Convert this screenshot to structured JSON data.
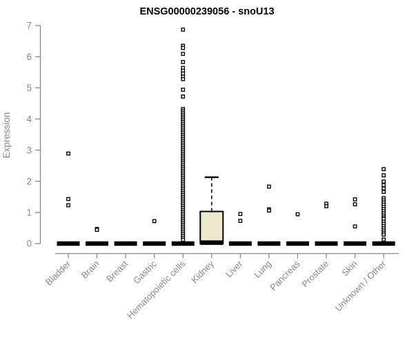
{
  "chart_data": {
    "type": "boxplot",
    "title": "ENSG00000239056 - snoU13",
    "ylabel": "Expression",
    "xlabel": "",
    "ylim": [
      0,
      7
    ],
    "yticks": [
      0,
      1,
      2,
      3,
      4,
      5,
      6,
      7
    ],
    "grid": false,
    "legend": "none",
    "axis_color": "#878787",
    "box_fill": "#eee8cd",
    "box_stroke": "#000000",
    "outlier_marker": "open-square",
    "categories": [
      "Bladder",
      "Brain",
      "Breast",
      "Gastric",
      "Hematopoietic cells",
      "Kidney",
      "Liver",
      "Lung",
      "Pancreas",
      "Prostate",
      "Skin",
      "Unknown / Other"
    ],
    "series": [
      {
        "category": "Bladder",
        "median": 0,
        "q1": 0,
        "q3": 0,
        "whisker_low": 0,
        "whisker_high": 0,
        "outliers": [
          2.89,
          1.43,
          1.23
        ]
      },
      {
        "category": "Brain",
        "median": 0,
        "q1": 0,
        "q3": 0,
        "whisker_low": 0,
        "whisker_high": 0,
        "outliers": [
          0.47,
          0.44
        ]
      },
      {
        "category": "Breast",
        "median": 0,
        "q1": 0,
        "q3": 0,
        "whisker_low": 0,
        "whisker_high": 0,
        "outliers": []
      },
      {
        "category": "Gastric",
        "median": 0,
        "q1": 0,
        "q3": 0,
        "whisker_low": 0,
        "whisker_high": 0,
        "outliers": [
          0.72
        ]
      },
      {
        "category": "Hematopoietic cells",
        "median": 0,
        "q1": 0,
        "q3": 0,
        "whisker_low": 0,
        "whisker_high": 0,
        "outliers": [
          6.87,
          6.35,
          6.28,
          6.09,
          5.83,
          5.64,
          5.55,
          5.46,
          5.36,
          5.28,
          4.94,
          4.72,
          4.32,
          4.26,
          4.2,
          4.14,
          4.08,
          4.02,
          3.96,
          3.9,
          3.84,
          3.78,
          3.72,
          3.66,
          3.6,
          3.54,
          3.48,
          3.42,
          3.36,
          3.3,
          3.24,
          3.18,
          3.12,
          3.06,
          3.0,
          2.94,
          2.88,
          2.82,
          2.76,
          2.7,
          2.64,
          2.58,
          2.52,
          2.46,
          2.4,
          2.34,
          2.28,
          2.22,
          2.16,
          2.1,
          2.04,
          1.98,
          1.92,
          1.86,
          1.8,
          1.74,
          1.68,
          1.62,
          1.56,
          1.5,
          1.44,
          1.38,
          1.32,
          1.26,
          1.2,
          1.14,
          1.08,
          1.02,
          0.96,
          0.9,
          0.84,
          0.78,
          0.72,
          0.66,
          0.6,
          0.54,
          0.48,
          0.42,
          0.36,
          0.3,
          0.24,
          0.18,
          0.12
        ]
      },
      {
        "category": "Kidney",
        "median": 0.03,
        "q1": 0,
        "q3": 1.03,
        "whisker_low": 0,
        "whisker_high": 2.13,
        "outliers": []
      },
      {
        "category": "Liver",
        "median": 0,
        "q1": 0,
        "q3": 0,
        "whisker_low": 0,
        "whisker_high": 0,
        "outliers": [
          0.95,
          0.73
        ]
      },
      {
        "category": "Lung",
        "median": 0,
        "q1": 0,
        "q3": 0,
        "whisker_low": 0,
        "whisker_high": 0,
        "outliers": [
          1.83,
          1.1,
          1.06
        ]
      },
      {
        "category": "Pancreas",
        "median": 0,
        "q1": 0,
        "q3": 0,
        "whisker_low": 0,
        "whisker_high": 0,
        "outliers": [
          0.94
        ]
      },
      {
        "category": "Prostate",
        "median": 0,
        "q1": 0,
        "q3": 0,
        "whisker_low": 0,
        "whisker_high": 0,
        "outliers": [
          1.28,
          1.2
        ]
      },
      {
        "category": "Skin",
        "median": 0,
        "q1": 0,
        "q3": 0,
        "whisker_low": 0,
        "whisker_high": 0,
        "outliers": [
          1.42,
          1.26,
          0.55
        ]
      },
      {
        "category": "Unknown / Other",
        "median": 0,
        "q1": 0,
        "q3": 0,
        "whisker_low": 0,
        "whisker_high": 0,
        "outliers": [
          2.39,
          2.19,
          1.99,
          1.88,
          1.77,
          1.66,
          1.46,
          1.39,
          1.32,
          1.25,
          1.18,
          1.11,
          1.04,
          0.97,
          0.9,
          0.84,
          0.79,
          0.7,
          0.63,
          0.56,
          0.49,
          0.42,
          0.35,
          0.29,
          0.13
        ]
      }
    ]
  }
}
